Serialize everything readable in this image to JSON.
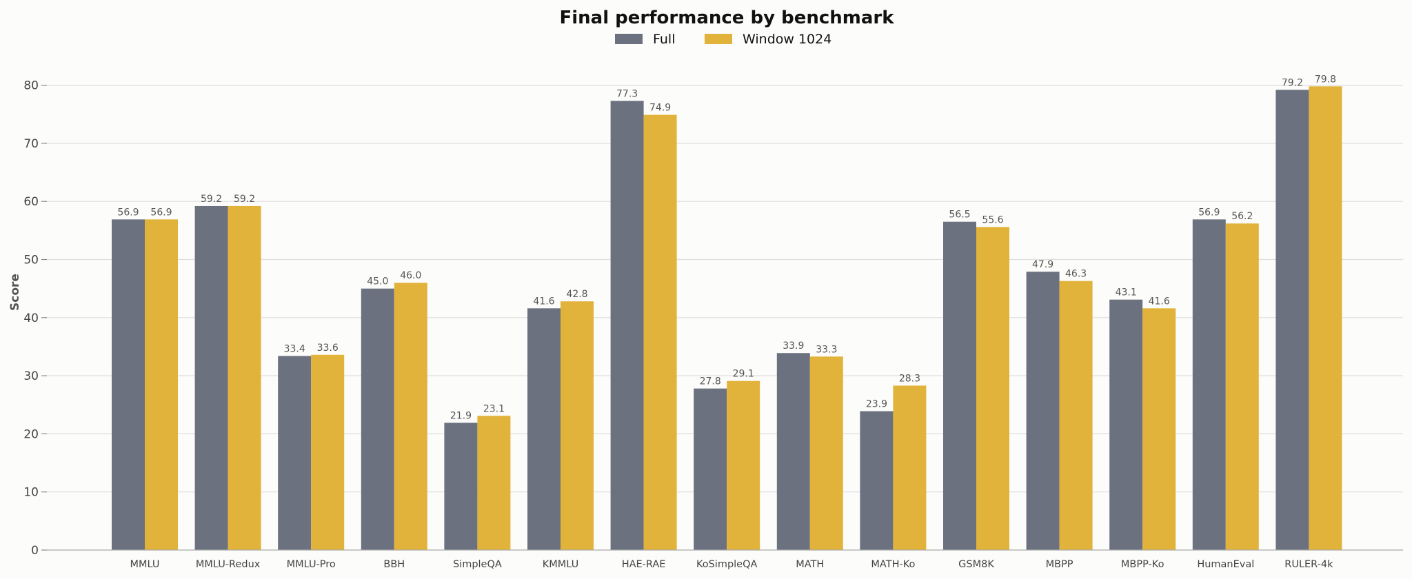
{
  "chart_data": {
    "type": "bar",
    "title": "Final performance by benchmark",
    "xlabel": "",
    "ylabel": "Score",
    "ylim": [
      0,
      85
    ],
    "yticks": [
      0,
      10,
      20,
      30,
      40,
      50,
      60,
      70,
      80
    ],
    "grid": "horizontal",
    "legend": "top-center",
    "categories": [
      "MMLU",
      "MMLU-Redux",
      "MMLU-Pro",
      "BBH",
      "SimpleQA",
      "KMMLU",
      "HAE-RAE",
      "KoSimpleQA",
      "MATH",
      "MATH-Ko",
      "GSM8K",
      "MBPP",
      "MBPP-Ko",
      "HumanEval",
      "RULER-4k"
    ],
    "series": [
      {
        "name": "Full",
        "color": "#6b717f",
        "values": [
          56.9,
          59.2,
          33.4,
          45.0,
          21.9,
          41.6,
          77.3,
          27.8,
          33.9,
          23.9,
          56.5,
          47.9,
          43.1,
          56.9,
          79.2
        ],
        "labels": [
          "56.9",
          "59.2",
          "33.4",
          "45.0",
          "21.9",
          "41.6",
          "77.3",
          "27.8",
          "33.9",
          "23.9",
          "56.5",
          "47.9",
          "43.1",
          "56.9",
          "79.2"
        ]
      },
      {
        "name": "Window 1024",
        "color": "#e2b33a",
        "values": [
          56.9,
          59.2,
          33.6,
          46.0,
          23.1,
          42.8,
          74.9,
          29.1,
          33.3,
          28.3,
          55.6,
          46.3,
          41.6,
          56.2,
          79.8
        ],
        "labels": [
          "56.9",
          "59.2",
          "33.6",
          "46.0",
          "23.1",
          "42.8",
          "74.9",
          "29.1",
          "33.3",
          "28.3",
          "55.6",
          "46.3",
          "41.6",
          "56.2",
          "79.8"
        ]
      }
    ]
  }
}
